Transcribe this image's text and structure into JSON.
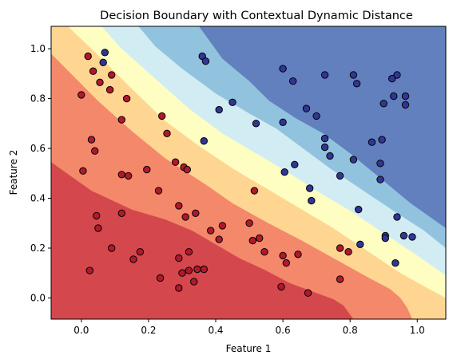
{
  "chart_data": {
    "type": "scatter",
    "title": "Decision Boundary with Contextual Dynamic Distance",
    "xlabel": "Feature 1",
    "ylabel": "Feature 2",
    "xlim": [
      -0.09,
      1.085
    ],
    "ylim": [
      -0.085,
      1.09
    ],
    "xticks": [
      "0.0",
      "0.2",
      "0.4",
      "0.6",
      "0.8",
      "1.0"
    ],
    "yticks": [
      "0.0",
      "0.2",
      "0.4",
      "0.6",
      "0.8",
      "1.0"
    ],
    "grid": false,
    "legend": "none",
    "background_regions": {
      "colormap": "RdYlBu",
      "colors": [
        "#d4484d",
        "#f3896a",
        "#fed692",
        "#fefec3",
        "#d2ecf4",
        "#92c3de",
        "#6180bd"
      ],
      "boundaries": [
        [
          [
            -0.09,
            0.545
          ],
          [
            0.03,
            0.43
          ],
          [
            0.15,
            0.355
          ],
          [
            0.25,
            0.315
          ],
          [
            0.33,
            0.27
          ],
          [
            0.4,
            0.215
          ],
          [
            0.47,
            0.16
          ],
          [
            0.55,
            0.11
          ],
          [
            0.62,
            0.06
          ],
          [
            0.7,
            0.02
          ],
          [
            0.75,
            -0.005
          ],
          [
            0.78,
            -0.03
          ],
          [
            0.81,
            -0.085
          ]
        ],
        [
          [
            -0.09,
            0.98
          ],
          [
            0.05,
            0.79
          ],
          [
            0.15,
            0.67
          ],
          [
            0.25,
            0.56
          ],
          [
            0.37,
            0.455
          ],
          [
            0.45,
            0.38
          ],
          [
            0.55,
            0.305
          ],
          [
            0.65,
            0.235
          ],
          [
            0.75,
            0.16
          ],
          [
            0.85,
            0.085
          ],
          [
            0.92,
            0.035
          ],
          [
            0.95,
            0.0
          ],
          [
            0.97,
            -0.04
          ],
          [
            0.985,
            -0.085
          ]
        ],
        [
          [
            -0.04,
            1.09
          ],
          [
            0.03,
            1.0
          ],
          [
            0.15,
            0.84
          ],
          [
            0.25,
            0.71
          ],
          [
            0.35,
            0.61
          ],
          [
            0.45,
            0.52
          ],
          [
            0.55,
            0.44
          ],
          [
            0.65,
            0.36
          ],
          [
            0.75,
            0.28
          ],
          [
            0.85,
            0.19
          ],
          [
            0.95,
            0.1
          ],
          [
            1.03,
            0.04
          ],
          [
            1.085,
            0.0
          ]
        ],
        [
          [
            0.06,
            1.09
          ],
          [
            0.12,
            1.0
          ],
          [
            0.22,
            0.88
          ],
          [
            0.32,
            0.76
          ],
          [
            0.42,
            0.66
          ],
          [
            0.52,
            0.58
          ],
          [
            0.62,
            0.5
          ],
          [
            0.7,
            0.43
          ],
          [
            0.8,
            0.35
          ],
          [
            0.9,
            0.26
          ],
          [
            1.0,
            0.17
          ],
          [
            1.085,
            0.09
          ]
        ],
        [
          [
            0.17,
            1.09
          ],
          [
            0.22,
            1.01
          ],
          [
            0.3,
            0.92
          ],
          [
            0.4,
            0.82
          ],
          [
            0.5,
            0.74
          ],
          [
            0.58,
            0.68
          ],
          [
            0.66,
            0.6
          ],
          [
            0.74,
            0.52
          ],
          [
            0.84,
            0.43
          ],
          [
            0.94,
            0.34
          ],
          [
            1.02,
            0.27
          ],
          [
            1.085,
            0.2
          ]
        ],
        [
          [
            0.35,
            1.09
          ],
          [
            0.42,
            0.96
          ],
          [
            0.5,
            0.87
          ],
          [
            0.56,
            0.79
          ],
          [
            0.64,
            0.72
          ],
          [
            0.72,
            0.66
          ],
          [
            0.8,
            0.58
          ],
          [
            0.9,
            0.47
          ],
          [
            0.98,
            0.38
          ],
          [
            1.085,
            0.28
          ]
        ]
      ]
    },
    "series": [
      {
        "color": "#b2182b",
        "points": [
          [
            0.02,
            0.97
          ],
          [
            0.035,
            0.91
          ],
          [
            0.055,
            0.865
          ],
          [
            0.09,
            0.895
          ],
          [
            0.085,
            0.835
          ],
          [
            0.0,
            0.815
          ],
          [
            0.135,
            0.8
          ],
          [
            0.12,
            0.715
          ],
          [
            0.03,
            0.635
          ],
          [
            0.04,
            0.59
          ],
          [
            0.005,
            0.51
          ],
          [
            0.12,
            0.495
          ],
          [
            0.14,
            0.49
          ],
          [
            0.195,
            0.515
          ],
          [
            0.23,
            0.43
          ],
          [
            0.24,
            0.73
          ],
          [
            0.255,
            0.66
          ],
          [
            0.28,
            0.545
          ],
          [
            0.305,
            0.525
          ],
          [
            0.315,
            0.515
          ],
          [
            0.515,
            0.43
          ],
          [
            0.045,
            0.33
          ],
          [
            0.05,
            0.28
          ],
          [
            0.12,
            0.34
          ],
          [
            0.09,
            0.2
          ],
          [
            0.025,
            0.11
          ],
          [
            0.155,
            0.155
          ],
          [
            0.175,
            0.185
          ],
          [
            0.29,
            0.37
          ],
          [
            0.31,
            0.325
          ],
          [
            0.34,
            0.34
          ],
          [
            0.385,
            0.27
          ],
          [
            0.42,
            0.29
          ],
          [
            0.41,
            0.235
          ],
          [
            0.5,
            0.3
          ],
          [
            0.51,
            0.23
          ],
          [
            0.53,
            0.24
          ],
          [
            0.545,
            0.185
          ],
          [
            0.29,
            0.16
          ],
          [
            0.32,
            0.185
          ],
          [
            0.3,
            0.1
          ],
          [
            0.32,
            0.11
          ],
          [
            0.335,
            0.065
          ],
          [
            0.345,
            0.115
          ],
          [
            0.365,
            0.115
          ],
          [
            0.29,
            0.04
          ],
          [
            0.235,
            0.08
          ],
          [
            0.6,
            0.17
          ],
          [
            0.61,
            0.14
          ],
          [
            0.645,
            0.175
          ],
          [
            0.595,
            0.045
          ],
          [
            0.675,
            0.02
          ],
          [
            0.77,
            0.2
          ],
          [
            0.795,
            0.185
          ],
          [
            0.77,
            0.075
          ]
        ]
      },
      {
        "color": "#313695",
        "points": [
          [
            0.07,
            0.985
          ],
          [
            0.065,
            0.945
          ],
          [
            0.36,
            0.97
          ],
          [
            0.37,
            0.95
          ],
          [
            0.41,
            0.755
          ],
          [
            0.45,
            0.785
          ],
          [
            0.52,
            0.7
          ],
          [
            0.365,
            0.63
          ],
          [
            0.6,
            0.92
          ],
          [
            0.63,
            0.87
          ],
          [
            0.725,
            0.895
          ],
          [
            0.81,
            0.895
          ],
          [
            0.82,
            0.86
          ],
          [
            0.6,
            0.705
          ],
          [
            0.67,
            0.76
          ],
          [
            0.7,
            0.73
          ],
          [
            0.725,
            0.64
          ],
          [
            0.725,
            0.605
          ],
          [
            0.74,
            0.57
          ],
          [
            0.77,
            0.49
          ],
          [
            0.81,
            0.555
          ],
          [
            0.865,
            0.625
          ],
          [
            0.895,
            0.635
          ],
          [
            0.9,
            0.78
          ],
          [
            0.925,
            0.88
          ],
          [
            0.94,
            0.895
          ],
          [
            0.93,
            0.81
          ],
          [
            0.965,
            0.81
          ],
          [
            0.965,
            0.775
          ],
          [
            0.605,
            0.505
          ],
          [
            0.635,
            0.535
          ],
          [
            0.68,
            0.44
          ],
          [
            0.685,
            0.39
          ],
          [
            0.825,
            0.355
          ],
          [
            0.89,
            0.475
          ],
          [
            0.89,
            0.54
          ],
          [
            0.94,
            0.325
          ],
          [
            0.905,
            0.25
          ],
          [
            0.905,
            0.24
          ],
          [
            0.96,
            0.25
          ],
          [
            0.985,
            0.245
          ],
          [
            0.83,
            0.215
          ],
          [
            0.935,
            0.14
          ]
        ]
      }
    ]
  }
}
